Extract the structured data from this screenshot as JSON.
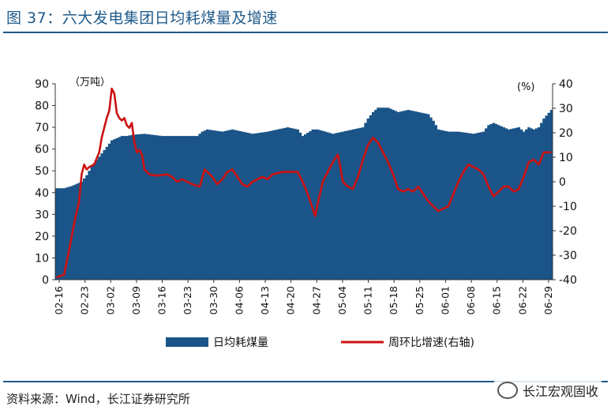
{
  "header": {
    "title": "图 37：六大发电集团日均耗煤量及增速"
  },
  "footer": {
    "source": "资料来源：Wind，长江证券研究所",
    "watermark": "长江宏观固收"
  },
  "chart_data": {
    "type": "bar+line",
    "colors": {
      "bar": "#1a5488",
      "line": "#cc1111"
    },
    "left_unit": "（万吨）",
    "right_unit": "(%)",
    "left_axis": {
      "ylim": [
        0,
        90
      ],
      "ticks": [
        0,
        10,
        20,
        30,
        40,
        50,
        60,
        70,
        80,
        90
      ]
    },
    "right_axis": {
      "ylim": [
        -40,
        40
      ],
      "ticks": [
        -40,
        -30,
        -20,
        -10,
        0,
        10,
        20,
        30,
        40
      ]
    },
    "x_tick_labels": [
      "02-16",
      "02-23",
      "03-02",
      "03-09",
      "03-16",
      "03-23",
      "03-30",
      "04-06",
      "04-13",
      "04-20",
      "04-27",
      "05-04",
      "05-11",
      "05-18",
      "05-25",
      "06-01",
      "06-08",
      "06-15",
      "06-22",
      "06-29"
    ],
    "legend": [
      {
        "key": "bar",
        "label": "日均耗煤量"
      },
      {
        "key": "line",
        "label": "周环比增速(右轴)"
      }
    ],
    "series": [
      {
        "name": "日均耗煤量",
        "axis": "left",
        "anchors": [
          [
            0,
            42
          ],
          [
            3,
            42
          ],
          [
            6,
            43
          ],
          [
            8,
            44
          ],
          [
            10,
            45
          ],
          [
            12,
            48
          ],
          [
            14,
            52
          ],
          [
            16,
            55
          ],
          [
            18,
            58
          ],
          [
            20,
            61
          ],
          [
            22,
            64
          ],
          [
            24,
            65
          ],
          [
            26,
            66
          ],
          [
            28,
            66
          ],
          [
            30,
            66.5
          ],
          [
            35,
            67
          ],
          [
            42,
            66
          ],
          [
            50,
            66
          ],
          [
            56,
            66
          ],
          [
            58,
            68
          ],
          [
            60,
            69
          ],
          [
            66,
            68
          ],
          [
            70,
            69
          ],
          [
            78,
            67
          ],
          [
            84,
            68
          ],
          [
            92,
            70
          ],
          [
            96,
            69
          ],
          [
            98,
            66
          ],
          [
            102,
            69
          ],
          [
            104,
            69
          ],
          [
            110,
            67
          ],
          [
            118,
            69
          ],
          [
            122,
            70
          ],
          [
            124,
            74
          ],
          [
            126,
            77
          ],
          [
            128,
            79
          ],
          [
            132,
            79
          ],
          [
            136,
            77
          ],
          [
            140,
            78
          ],
          [
            148,
            76
          ],
          [
            150,
            73
          ],
          [
            152,
            69
          ],
          [
            156,
            68
          ],
          [
            160,
            68
          ],
          [
            166,
            67
          ],
          [
            170,
            68
          ],
          [
            172,
            71
          ],
          [
            174,
            72
          ],
          [
            178,
            70
          ],
          [
            180,
            69
          ],
          [
            184,
            70
          ],
          [
            186,
            68
          ],
          [
            188,
            70
          ],
          [
            190,
            69
          ],
          [
            192,
            70
          ],
          [
            194,
            74
          ],
          [
            197,
            78
          ]
        ]
      },
      {
        "name": "周环比增速(右轴)",
        "axis": "right",
        "anchors": [
          [
            0,
            -39
          ],
          [
            3,
            -38
          ],
          [
            5,
            -28
          ],
          [
            7,
            -17
          ],
          [
            9,
            -8
          ],
          [
            10,
            3
          ],
          [
            11,
            7
          ],
          [
            12,
            5
          ],
          [
            13,
            6
          ],
          [
            15,
            7
          ],
          [
            17,
            12
          ],
          [
            18,
            18
          ],
          [
            19,
            22
          ],
          [
            20,
            26
          ],
          [
            21,
            29
          ],
          [
            22,
            38
          ],
          [
            23,
            36
          ],
          [
            24,
            28
          ],
          [
            25,
            26
          ],
          [
            26,
            25
          ],
          [
            27,
            26
          ],
          [
            28,
            23
          ],
          [
            29,
            22
          ],
          [
            30,
            24
          ],
          [
            31,
            16
          ],
          [
            32,
            12
          ],
          [
            33,
            13
          ],
          [
            34,
            11
          ],
          [
            35,
            5
          ],
          [
            37,
            3
          ],
          [
            40,
            2.5
          ],
          [
            44,
            3
          ],
          [
            46,
            2
          ],
          [
            48,
            0
          ],
          [
            50,
            1
          ],
          [
            54,
            -1
          ],
          [
            57,
            -2
          ],
          [
            59,
            5
          ],
          [
            62,
            2
          ],
          [
            64,
            -1
          ],
          [
            66,
            1
          ],
          [
            68,
            4
          ],
          [
            70,
            5
          ],
          [
            72,
            2
          ],
          [
            74,
            -1
          ],
          [
            76,
            -2
          ],
          [
            78,
            0
          ],
          [
            80,
            1
          ],
          [
            82,
            2
          ],
          [
            84,
            1
          ],
          [
            86,
            3
          ],
          [
            90,
            4
          ],
          [
            96,
            4
          ],
          [
            98,
            0
          ],
          [
            100,
            -5
          ],
          [
            102,
            -11
          ],
          [
            103,
            -14
          ],
          [
            104,
            -9
          ],
          [
            106,
            0
          ],
          [
            108,
            4
          ],
          [
            110,
            8
          ],
          [
            112,
            11
          ],
          [
            113,
            6
          ],
          [
            114,
            0
          ],
          [
            116,
            -2
          ],
          [
            118,
            -3
          ],
          [
            120,
            2
          ],
          [
            122,
            9
          ],
          [
            124,
            15
          ],
          [
            126,
            18
          ],
          [
            128,
            16
          ],
          [
            130,
            12
          ],
          [
            132,
            8
          ],
          [
            134,
            3
          ],
          [
            136,
            -3
          ],
          [
            138,
            -4
          ],
          [
            140,
            -3
          ],
          [
            142,
            -4
          ],
          [
            144,
            -2
          ],
          [
            146,
            -5
          ],
          [
            148,
            -8
          ],
          [
            150,
            -10
          ],
          [
            152,
            -12
          ],
          [
            154,
            -11
          ],
          [
            156,
            -10
          ],
          [
            158,
            -5
          ],
          [
            160,
            0
          ],
          [
            162,
            4
          ],
          [
            164,
            7
          ],
          [
            166,
            6
          ],
          [
            168,
            5
          ],
          [
            170,
            3
          ],
          [
            172,
            -2
          ],
          [
            174,
            -6
          ],
          [
            176,
            -4
          ],
          [
            178,
            -2
          ],
          [
            180,
            -2
          ],
          [
            182,
            -4
          ],
          [
            184,
            -3
          ],
          [
            186,
            2
          ],
          [
            188,
            8
          ],
          [
            190,
            9
          ],
          [
            192,
            7
          ],
          [
            194,
            12
          ],
          [
            197,
            12
          ]
        ]
      }
    ]
  }
}
